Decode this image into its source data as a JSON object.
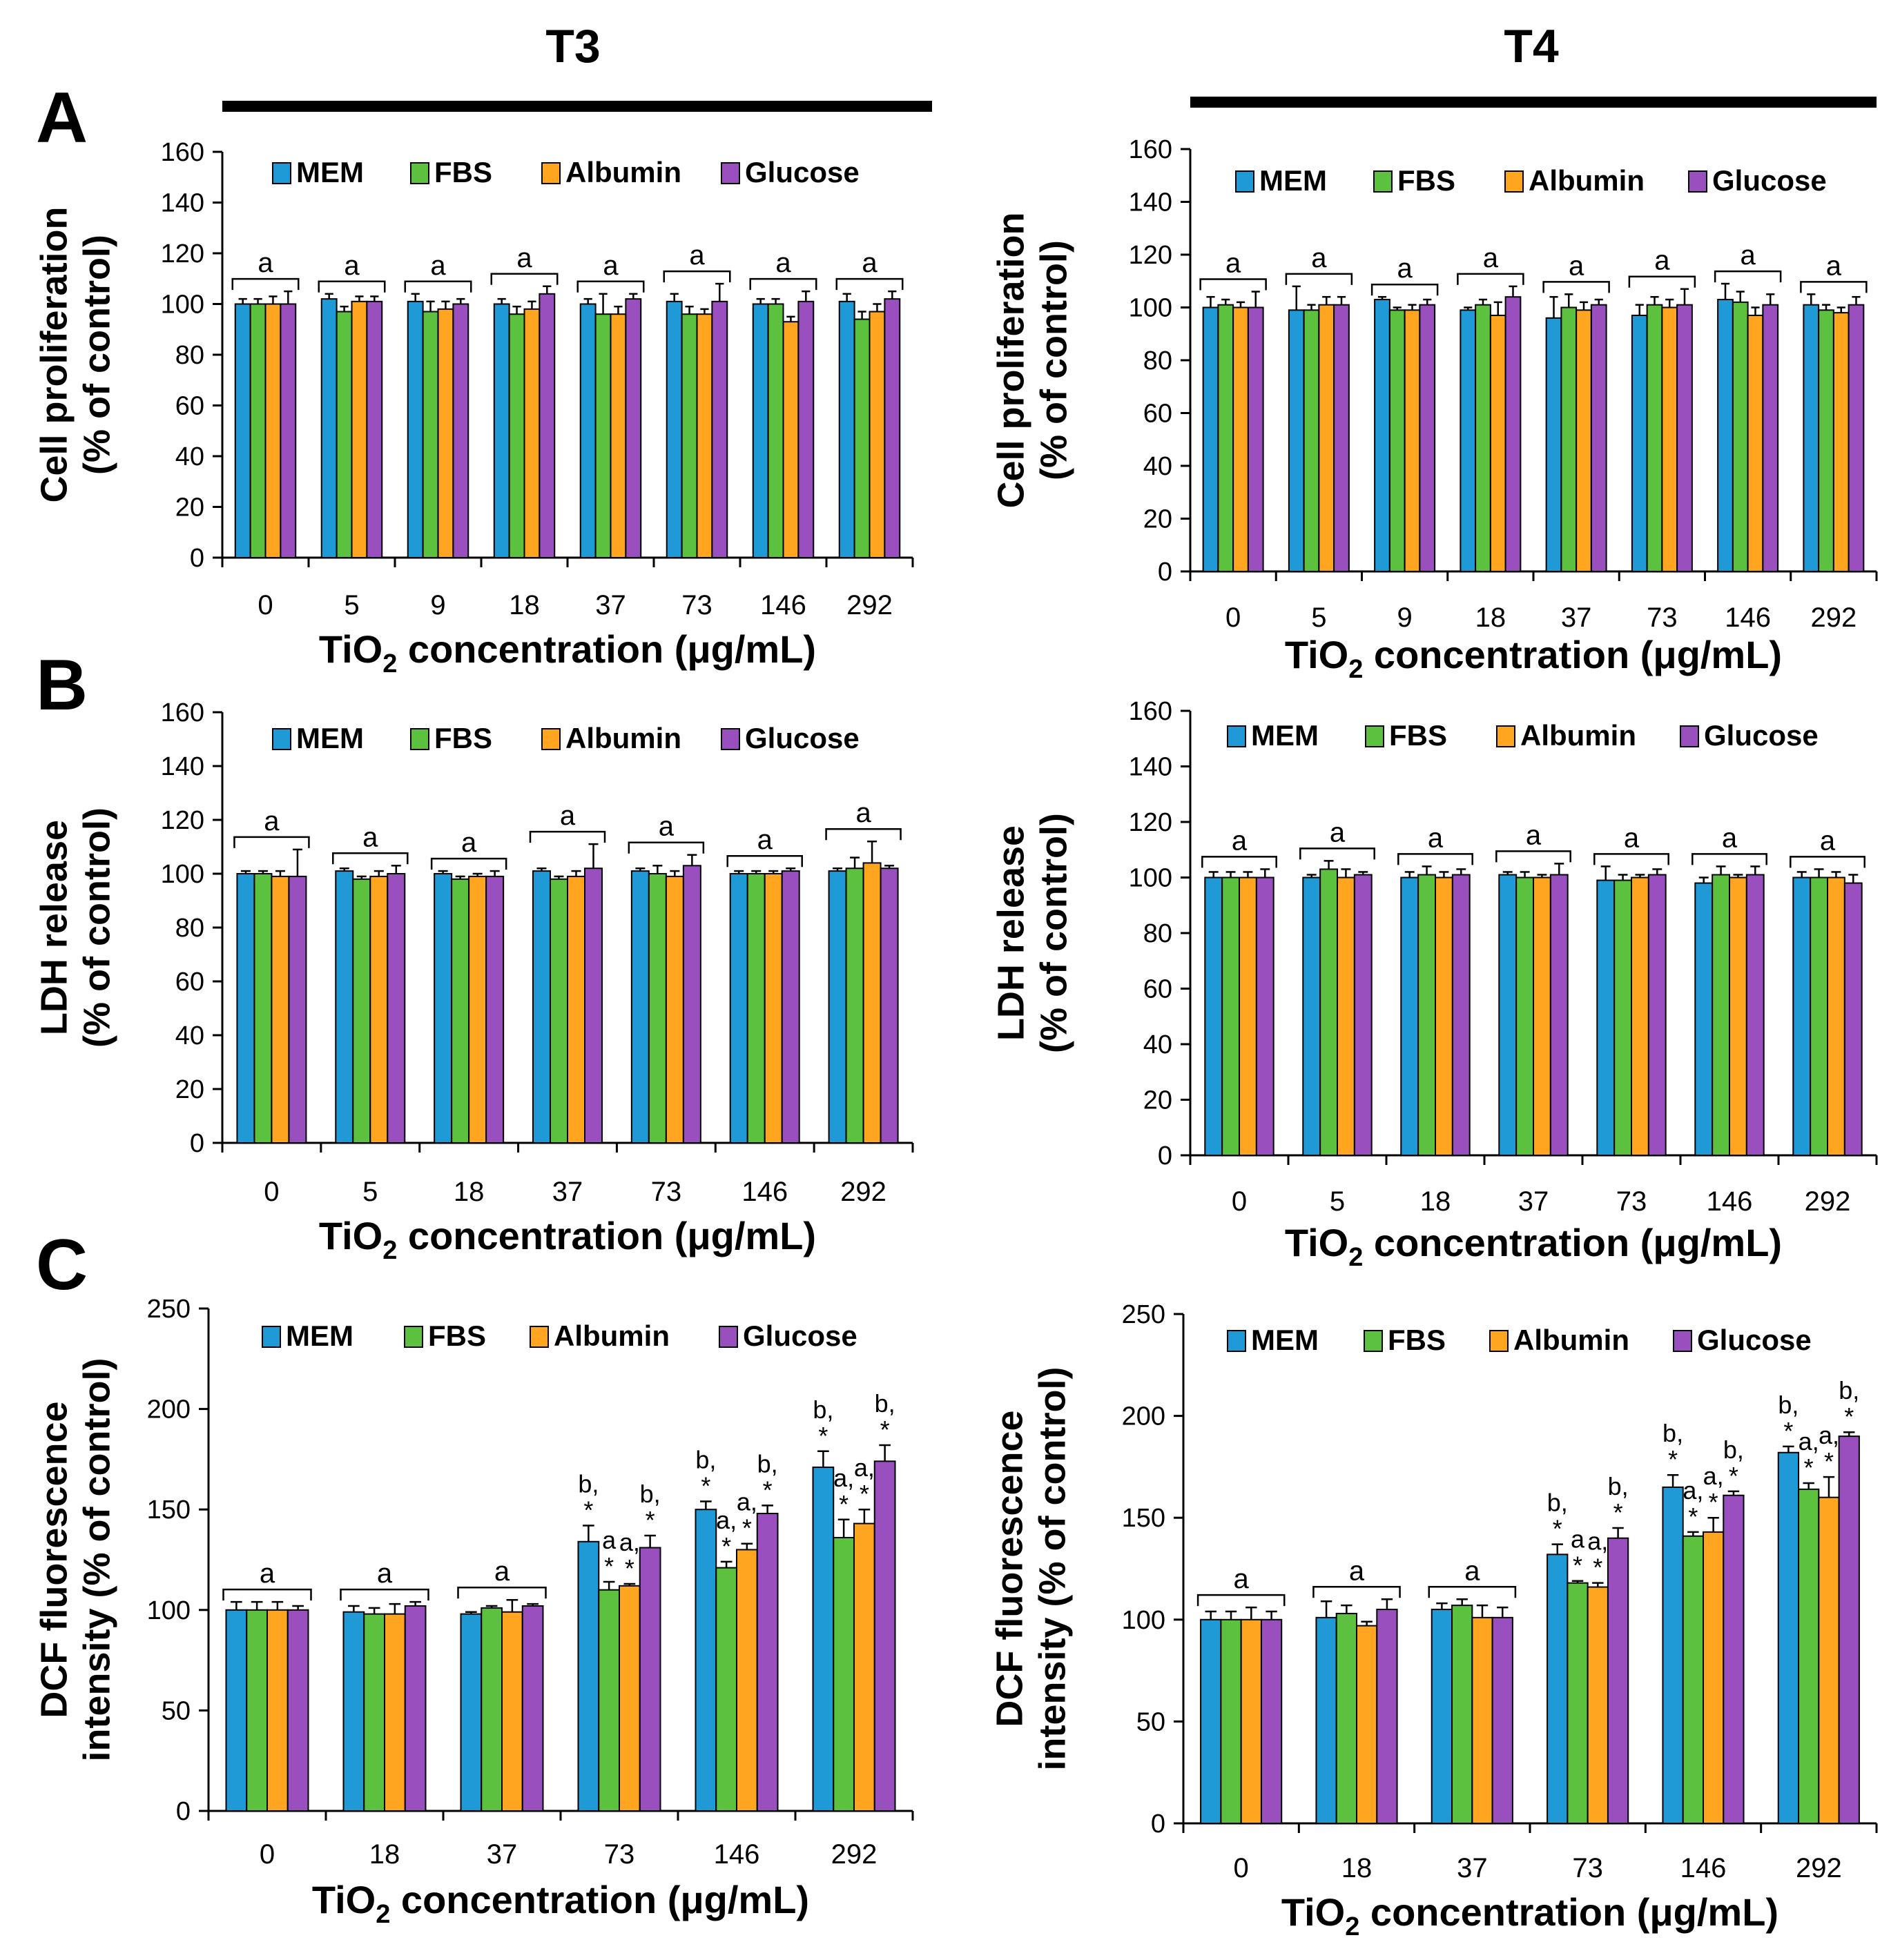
{
  "figure": {
    "columns": [
      "T3",
      "T4"
    ],
    "panel_letters": [
      "A",
      "B",
      "C"
    ],
    "series_names": [
      "MEM",
      "FBS",
      "Albumin",
      "Glucose"
    ],
    "series_colors": [
      "#1f9ad6",
      "#5cc13e",
      "#ffa51f",
      "#9a4fbe"
    ],
    "xlabel_prefix": "TiO",
    "xlabel_sub": "2",
    "xlabel_suffix": " concentration (μg/mL)"
  },
  "chart_data": [
    {
      "id": "A-T3",
      "type": "bar",
      "panel": "A",
      "column": "T3",
      "ylabel": [
        "Cell proliferation",
        "(% of control)"
      ],
      "ylim": [
        0,
        160
      ],
      "yticks": [
        0,
        20,
        40,
        60,
        80,
        100,
        120,
        140,
        160
      ],
      "categories": [
        "0",
        "5",
        "9",
        "18",
        "37",
        "73",
        "146",
        "292"
      ],
      "series": [
        {
          "name": "MEM",
          "values": [
            100,
            102,
            101,
            100,
            100,
            101,
            100,
            101
          ],
          "errors": [
            2,
            2,
            3,
            2,
            2,
            3,
            2,
            3
          ]
        },
        {
          "name": "FBS",
          "values": [
            100,
            97,
            97,
            96,
            96,
            96,
            100,
            94
          ],
          "errors": [
            2,
            2,
            4,
            3,
            8,
            3,
            2,
            3
          ]
        },
        {
          "name": "Albumin",
          "values": [
            100,
            101,
            98,
            98,
            96,
            96,
            93,
            97
          ],
          "errors": [
            3,
            2,
            3,
            3,
            3,
            2,
            2,
            3
          ]
        },
        {
          "name": "Glucose",
          "values": [
            100,
            101,
            100,
            104,
            102,
            101,
            101,
            102
          ],
          "errors": [
            5,
            2,
            2,
            3,
            2,
            7,
            4,
            3
          ]
        }
      ],
      "annotations": [
        {
          "category": 0,
          "text": "a"
        },
        {
          "category": 1,
          "text": "a"
        },
        {
          "category": 2,
          "text": "a"
        },
        {
          "category": 3,
          "text": "a"
        },
        {
          "category": 4,
          "text": "a"
        },
        {
          "category": 5,
          "text": "a"
        },
        {
          "category": 6,
          "text": "a"
        },
        {
          "category": 7,
          "text": "a"
        }
      ],
      "bar_labels": []
    },
    {
      "id": "A-T4",
      "type": "bar",
      "panel": "A",
      "column": "T4",
      "ylabel": [
        "Cell proliferation",
        "(% of control)"
      ],
      "ylim": [
        0,
        160
      ],
      "yticks": [
        0,
        20,
        40,
        60,
        80,
        100,
        120,
        140,
        160
      ],
      "categories": [
        "0",
        "5",
        "9",
        "18",
        "37",
        "73",
        "146",
        "292"
      ],
      "series": [
        {
          "name": "MEM",
          "values": [
            100,
            99,
            103,
            99,
            96,
            97,
            103,
            101
          ],
          "errors": [
            4,
            9,
            1,
            1,
            8,
            4,
            6,
            4
          ]
        },
        {
          "name": "FBS",
          "values": [
            101,
            99,
            99,
            101,
            100,
            101,
            102,
            99
          ],
          "errors": [
            2,
            2,
            1,
            2,
            5,
            3,
            4,
            2
          ]
        },
        {
          "name": "Albumin",
          "values": [
            100,
            101,
            99,
            97,
            99,
            100,
            97,
            98
          ],
          "errors": [
            2,
            3,
            2,
            5,
            3,
            3,
            3,
            2
          ]
        },
        {
          "name": "Glucose",
          "values": [
            100,
            101,
            101,
            104,
            101,
            101,
            101,
            101
          ],
          "errors": [
            6,
            3,
            2,
            4,
            2,
            6,
            4,
            3
          ]
        }
      ],
      "annotations": [
        {
          "category": 0,
          "text": "a"
        },
        {
          "category": 1,
          "text": "a"
        },
        {
          "category": 2,
          "text": "a"
        },
        {
          "category": 3,
          "text": "a"
        },
        {
          "category": 4,
          "text": "a"
        },
        {
          "category": 5,
          "text": "a"
        },
        {
          "category": 6,
          "text": "a"
        },
        {
          "category": 7,
          "text": "a"
        }
      ],
      "bar_labels": []
    },
    {
      "id": "B-T3",
      "type": "bar",
      "panel": "B",
      "column": "T3",
      "ylabel": [
        "LDH release",
        "(% of control)"
      ],
      "ylim": [
        0,
        160
      ],
      "yticks": [
        0,
        20,
        40,
        60,
        80,
        100,
        120,
        140,
        160
      ],
      "categories": [
        "0",
        "5",
        "18",
        "37",
        "73",
        "146",
        "292"
      ],
      "series": [
        {
          "name": "MEM",
          "values": [
            100,
            101,
            100,
            101,
            101,
            100,
            101
          ],
          "errors": [
            1,
            1,
            1,
            1,
            1,
            1,
            1
          ]
        },
        {
          "name": "FBS",
          "values": [
            100,
            98,
            98,
            98,
            100,
            100,
            102
          ],
          "errors": [
            1,
            1,
            1,
            1,
            3,
            1,
            4
          ]
        },
        {
          "name": "Albumin",
          "values": [
            99,
            99,
            99,
            99,
            99,
            100,
            104
          ],
          "errors": [
            2,
            2,
            1,
            2,
            2,
            1,
            8
          ]
        },
        {
          "name": "Glucose",
          "values": [
            99,
            100,
            99,
            102,
            103,
            101,
            102
          ],
          "errors": [
            10,
            3,
            2,
            9,
            4,
            1,
            1
          ]
        }
      ],
      "annotations": [
        {
          "category": 0,
          "text": "a"
        },
        {
          "category": 1,
          "text": "a"
        },
        {
          "category": 2,
          "text": "a"
        },
        {
          "category": 3,
          "text": "a"
        },
        {
          "category": 4,
          "text": "a"
        },
        {
          "category": 5,
          "text": "a"
        },
        {
          "category": 6,
          "text": "a"
        }
      ],
      "bar_labels": []
    },
    {
      "id": "B-T4",
      "type": "bar",
      "panel": "B",
      "column": "T4",
      "ylabel": [
        "LDH release",
        "(% of control)"
      ],
      "ylim": [
        0,
        160
      ],
      "yticks": [
        0,
        20,
        40,
        60,
        80,
        100,
        120,
        140,
        160
      ],
      "categories": [
        "0",
        "5",
        "18",
        "37",
        "73",
        "146",
        "292"
      ],
      "series": [
        {
          "name": "MEM",
          "values": [
            100,
            100,
            100,
            101,
            99,
            98,
            100
          ],
          "errors": [
            2,
            1,
            2,
            1,
            5,
            2,
            2
          ]
        },
        {
          "name": "FBS",
          "values": [
            100,
            103,
            101,
            100,
            99,
            101,
            100
          ],
          "errors": [
            2,
            3,
            3,
            2,
            2,
            3,
            3
          ]
        },
        {
          "name": "Albumin",
          "values": [
            100,
            100,
            100,
            100,
            100,
            100,
            100
          ],
          "errors": [
            2,
            3,
            2,
            1,
            1,
            1,
            2
          ]
        },
        {
          "name": "Glucose",
          "values": [
            100,
            101,
            101,
            101,
            101,
            101,
            98
          ],
          "errors": [
            3,
            1,
            2,
            4,
            2,
            3,
            3
          ]
        }
      ],
      "annotations": [
        {
          "category": 0,
          "text": "a"
        },
        {
          "category": 1,
          "text": "a"
        },
        {
          "category": 2,
          "text": "a"
        },
        {
          "category": 3,
          "text": "a"
        },
        {
          "category": 4,
          "text": "a"
        },
        {
          "category": 5,
          "text": "a"
        },
        {
          "category": 6,
          "text": "a"
        }
      ],
      "bar_labels": []
    },
    {
      "id": "C-T3",
      "type": "bar",
      "panel": "C",
      "column": "T3",
      "ylabel": [
        "DCF fluorescence",
        "intensity (% of control)"
      ],
      "ylim": [
        0,
        250
      ],
      "yticks": [
        0,
        50,
        100,
        150,
        200,
        250
      ],
      "categories": [
        "0",
        "18",
        "37",
        "73",
        "146",
        "292"
      ],
      "series": [
        {
          "name": "MEM",
          "values": [
            100,
            99,
            98,
            134,
            150,
            171
          ],
          "errors": [
            4,
            3,
            1,
            8,
            4,
            8
          ]
        },
        {
          "name": "FBS",
          "values": [
            100,
            98,
            101,
            110,
            121,
            136
          ],
          "errors": [
            4,
            3,
            1,
            4,
            3,
            9
          ]
        },
        {
          "name": "Albumin",
          "values": [
            100,
            98,
            99,
            112,
            130,
            143
          ],
          "errors": [
            4,
            5,
            6,
            1,
            3,
            7
          ]
        },
        {
          "name": "Glucose",
          "values": [
            100,
            102,
            102,
            131,
            148,
            174
          ],
          "errors": [
            2,
            2,
            1,
            6,
            4,
            8
          ]
        }
      ],
      "annotations": [
        {
          "category": 0,
          "text": "a"
        },
        {
          "category": 1,
          "text": "a"
        },
        {
          "category": 2,
          "text": "a"
        }
      ],
      "bar_labels": [
        {
          "category": 3,
          "series": 0,
          "lines": [
            "b,",
            "*"
          ]
        },
        {
          "category": 3,
          "series": 1,
          "lines": [
            "a",
            "*"
          ]
        },
        {
          "category": 3,
          "series": 2,
          "lines": [
            "a,",
            "*"
          ]
        },
        {
          "category": 3,
          "series": 3,
          "lines": [
            "b,",
            "*"
          ]
        },
        {
          "category": 4,
          "series": 0,
          "lines": [
            "b,",
            "*"
          ]
        },
        {
          "category": 4,
          "series": 1,
          "lines": [
            "a,",
            "*"
          ]
        },
        {
          "category": 4,
          "series": 2,
          "lines": [
            "a,",
            "*"
          ]
        },
        {
          "category": 4,
          "series": 3,
          "lines": [
            "b,",
            "*"
          ]
        },
        {
          "category": 5,
          "series": 0,
          "lines": [
            "b,",
            "*"
          ]
        },
        {
          "category": 5,
          "series": 1,
          "lines": [
            "a,",
            "*"
          ]
        },
        {
          "category": 5,
          "series": 2,
          "lines": [
            "a,",
            "*"
          ]
        },
        {
          "category": 5,
          "series": 3,
          "lines": [
            "b,",
            "*"
          ]
        }
      ]
    },
    {
      "id": "C-T4",
      "type": "bar",
      "panel": "C",
      "column": "T4",
      "ylabel": [
        "DCF fluorescence",
        "intensity (% of control)"
      ],
      "ylim": [
        0,
        250
      ],
      "yticks": [
        0,
        50,
        100,
        150,
        200,
        250
      ],
      "categories": [
        "0",
        "18",
        "37",
        "73",
        "146",
        "292"
      ],
      "series": [
        {
          "name": "MEM",
          "values": [
            100,
            101,
            105,
            132,
            165,
            182
          ],
          "errors": [
            4,
            8,
            3,
            5,
            6,
            3
          ]
        },
        {
          "name": "FBS",
          "values": [
            100,
            103,
            107,
            118,
            141,
            164
          ],
          "errors": [
            4,
            4,
            3,
            1,
            2,
            3
          ]
        },
        {
          "name": "Albumin",
          "values": [
            100,
            97,
            101,
            116,
            143,
            160
          ],
          "errors": [
            6,
            2,
            6,
            2,
            7,
            10
          ]
        },
        {
          "name": "Glucose",
          "values": [
            100,
            105,
            101,
            140,
            161,
            190
          ],
          "errors": [
            4,
            5,
            5,
            5,
            2,
            2
          ]
        }
      ],
      "annotations": [
        {
          "category": 0,
          "text": "a"
        },
        {
          "category": 1,
          "text": "a"
        },
        {
          "category": 2,
          "text": "a"
        }
      ],
      "bar_labels": [
        {
          "category": 3,
          "series": 0,
          "lines": [
            "b,",
            "*"
          ]
        },
        {
          "category": 3,
          "series": 1,
          "lines": [
            "a",
            "*"
          ]
        },
        {
          "category": 3,
          "series": 2,
          "lines": [
            "a,",
            "*"
          ]
        },
        {
          "category": 3,
          "series": 3,
          "lines": [
            "b,",
            "*"
          ]
        },
        {
          "category": 4,
          "series": 0,
          "lines": [
            "b,",
            "*"
          ]
        },
        {
          "category": 4,
          "series": 1,
          "lines": [
            "a,",
            "*"
          ]
        },
        {
          "category": 4,
          "series": 2,
          "lines": [
            "a,",
            "*"
          ]
        },
        {
          "category": 4,
          "series": 3,
          "lines": [
            "b,",
            "*"
          ]
        },
        {
          "category": 5,
          "series": 0,
          "lines": [
            "b,",
            "*"
          ]
        },
        {
          "category": 5,
          "series": 1,
          "lines": [
            "a,",
            "*"
          ]
        },
        {
          "category": 5,
          "series": 2,
          "lines": [
            "a,",
            "*"
          ]
        },
        {
          "category": 5,
          "series": 3,
          "lines": [
            "b,",
            "*"
          ]
        }
      ]
    }
  ]
}
